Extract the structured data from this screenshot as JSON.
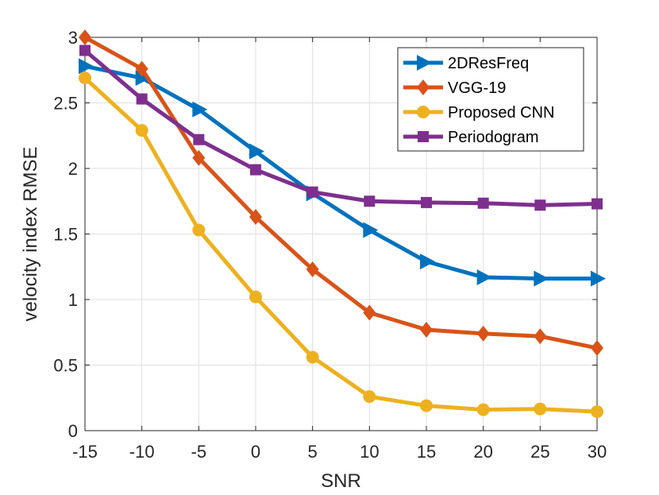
{
  "chart_data": {
    "type": "line",
    "title": "",
    "xlabel": "SNR",
    "ylabel": "velocity index RMSE",
    "x": [
      -15,
      -10,
      -5,
      0,
      5,
      10,
      15,
      20,
      25,
      30
    ],
    "xlim": [
      -15,
      30
    ],
    "ylim": [
      0,
      3
    ],
    "xticks": [
      -15,
      -10,
      -5,
      0,
      5,
      10,
      15,
      20,
      25,
      30
    ],
    "xtick_labels": [
      "-15",
      "-10",
      "-5",
      "0",
      "5",
      "10",
      "15",
      "20",
      "25",
      "30"
    ],
    "yticks": [
      0,
      0.5,
      1,
      1.5,
      2,
      2.5,
      3
    ],
    "ytick_labels": [
      "0",
      "0.5",
      "1",
      "1.5",
      "2",
      "2.5",
      "3"
    ],
    "grid": true,
    "legend_position": "top-right",
    "series": [
      {
        "name": "2DResFreq",
        "color": "#0072BD",
        "marker": "triangle-right",
        "values": [
          2.78,
          2.69,
          2.45,
          2.13,
          1.81,
          1.53,
          1.29,
          1.17,
          1.16,
          1.16
        ]
      },
      {
        "name": "VGG-19",
        "color": "#D95319",
        "marker": "diamond",
        "values": [
          3.0,
          2.76,
          2.08,
          1.63,
          1.23,
          0.9,
          0.77,
          0.74,
          0.72,
          0.63
        ]
      },
      {
        "name": "Proposed CNN",
        "color": "#EDB120",
        "marker": "circle",
        "values": [
          2.69,
          2.29,
          1.53,
          1.02,
          0.56,
          0.26,
          0.19,
          0.16,
          0.165,
          0.145
        ]
      },
      {
        "name": "Periodogram",
        "color": "#7E2F8E",
        "marker": "square",
        "values": [
          2.9,
          2.53,
          2.22,
          1.99,
          1.82,
          1.75,
          1.74,
          1.735,
          1.72,
          1.73
        ]
      }
    ]
  }
}
